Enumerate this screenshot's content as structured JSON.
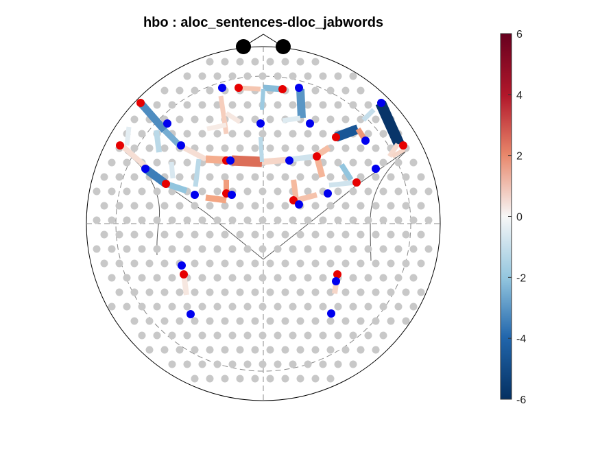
{
  "title": "hbo : aloc_sentences-dloc_jabwords",
  "colorbar": {
    "min": -6,
    "max": 6,
    "ticks": [
      "6",
      "4",
      "2",
      "0",
      "-2",
      "-4",
      "-6"
    ],
    "colors": {
      "low": "#08306b",
      "mid_low": "#4393c3",
      "zero": "#f7f7f7",
      "mid_high": "#d6604d",
      "high": "#67001f"
    }
  },
  "colors": {
    "source": "#e60000",
    "detector": "#0000ee",
    "layout_dot": "#c8c8c8",
    "outline": "#000000",
    "guide": "#888888"
  }
}
